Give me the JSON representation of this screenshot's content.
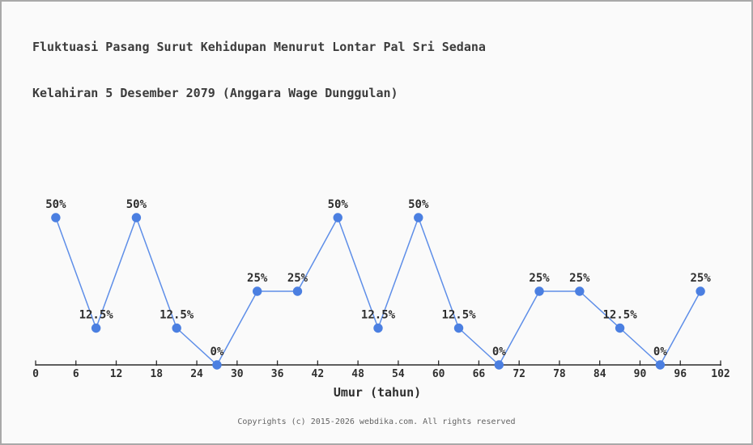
{
  "page": {
    "title_line1": "Fluktuasi Pasang Surut Kehidupan Menurut Lontar Pal Sri Sedana",
    "title_line2": "Kelahiran 5 Desember 2079 (Anggara Wage Dunggulan)",
    "footer": "Copyrights (c) 2015-2026 webdika.com. All rights reserved"
  },
  "chart_data": {
    "type": "line",
    "title": "Fluktuasi Pasang Surut Kehidupan Menurut Lontar Pal Sri Sedana Kelahiran 5 Desember 2079 (Anggara Wage Dunggulan)",
    "xlabel": "Umur (tahun)",
    "ylabel": "",
    "x": [
      3,
      9,
      15,
      21,
      27,
      33,
      39,
      45,
      51,
      57,
      63,
      69,
      75,
      81,
      87,
      93,
      99
    ],
    "values": [
      50,
      12.5,
      50,
      12.5,
      0,
      25,
      25,
      50,
      12.5,
      50,
      12.5,
      0,
      25,
      25,
      12.5,
      0,
      25
    ],
    "point_labels": [
      "50%",
      "12.5%",
      "50%",
      "12.5%",
      "0%",
      "25%",
      "25%",
      "50%",
      "12.5%",
      "50%",
      "12.5%",
      "0%",
      "25%",
      "25%",
      "12.5%",
      "0%",
      "25%"
    ],
    "x_ticks": [
      0,
      6,
      12,
      18,
      24,
      30,
      36,
      42,
      48,
      54,
      60,
      66,
      72,
      78,
      84,
      90,
      96,
      102
    ],
    "xlim": [
      0,
      102
    ],
    "ylim": [
      0,
      50
    ],
    "grid": false,
    "legend": "none",
    "colors": {
      "marker": "#4b7fe1",
      "line": "#5e8ee8",
      "axis": "#2b2b2b",
      "tick": "#2e2e2e",
      "title": "#3c3c3c",
      "footer": "#636363",
      "background": "#fafafa",
      "border": "#a9a9a9"
    }
  }
}
